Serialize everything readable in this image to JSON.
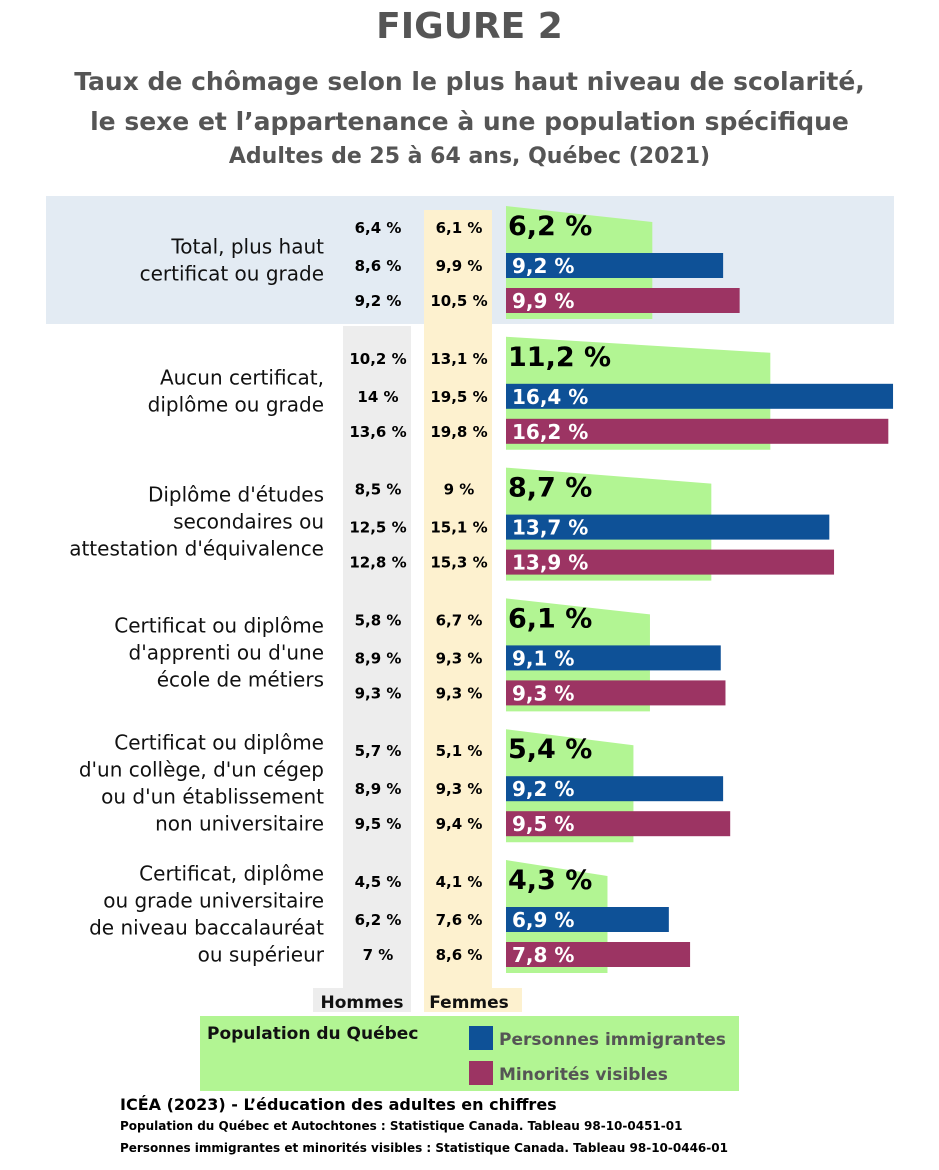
{
  "figure": {
    "label": "FIGURE 2",
    "title_line1": "Taux de chômage selon le plus haut niveau de scolarité,",
    "title_line2": "le sexe et l’appartenance à une population spécifique",
    "subtitle": "Adultes de 25 à 64 ans, Québec (2021)"
  },
  "colors": {
    "quebec": "#b2f593",
    "immigrants": "#0e5197",
    "minorities": "#9c3463",
    "hommes_col": "#ededed",
    "femmes_col": "#fdf1cf",
    "total_band": "#e3ebf3",
    "title_gray": "#555555"
  },
  "chart_data": {
    "type": "bar",
    "orientation": "horizontal",
    "column_headers": {
      "hommes": "Hommes",
      "femmes": "Femmes"
    },
    "categories": [
      {
        "label": [
          "Total, plus haut",
          "certificat ou grade"
        ],
        "highlighted": true,
        "rows": [
          {
            "group": "Population du Québec",
            "hommes": "6,4 %",
            "femmes": "6,1 %",
            "value": 6.2,
            "value_label": "6,2 %"
          },
          {
            "group": "Personnes immigrantes",
            "hommes": "8,6 %",
            "femmes": "9,9 %",
            "value": 9.2,
            "value_label": "9,2 %"
          },
          {
            "group": "Minorités visibles",
            "hommes": "9,2 %",
            "femmes": "10,5 %",
            "value": 9.9,
            "value_label": "9,9 %"
          }
        ]
      },
      {
        "label": [
          "Aucun certificat,",
          "diplôme ou grade"
        ],
        "rows": [
          {
            "group": "Population du Québec",
            "hommes": "10,2 %",
            "femmes": "13,1 %",
            "value": 11.2,
            "value_label": "11,2 %"
          },
          {
            "group": "Personnes immigrantes",
            "hommes": "14 %",
            "femmes": "19,5 %",
            "value": 16.4,
            "value_label": "16,4 %"
          },
          {
            "group": "Minorités visibles",
            "hommes": "13,6 %",
            "femmes": "19,8 %",
            "value": 16.2,
            "value_label": "16,2 %"
          }
        ]
      },
      {
        "label": [
          "Diplôme d'études",
          "secondaires ou",
          "attestation d'équivalence"
        ],
        "rows": [
          {
            "group": "Population du Québec",
            "hommes": "8,5 %",
            "femmes": "9 %",
            "value": 8.7,
            "value_label": "8,7 %"
          },
          {
            "group": "Personnes immigrantes",
            "hommes": "12,5 %",
            "femmes": "15,1 %",
            "value": 13.7,
            "value_label": "13,7 %"
          },
          {
            "group": "Minorités visibles",
            "hommes": "12,8 %",
            "femmes": "15,3 %",
            "value": 13.9,
            "value_label": "13,9 %"
          }
        ]
      },
      {
        "label": [
          "Certificat ou diplôme",
          "d'apprenti ou d'une",
          "école de métiers"
        ],
        "rows": [
          {
            "group": "Population du Québec",
            "hommes": "5,8 %",
            "femmes": "6,7 %",
            "value": 6.1,
            "value_label": "6,1 %"
          },
          {
            "group": "Personnes immigrantes",
            "hommes": "8,9 %",
            "femmes": "9,3 %",
            "value": 9.1,
            "value_label": "9,1 %"
          },
          {
            "group": "Minorités visibles",
            "hommes": "9,3 %",
            "femmes": "9,3 %",
            "value": 9.3,
            "value_label": "9,3 %"
          }
        ]
      },
      {
        "label": [
          "Certificat ou diplôme",
          "d'un collège, d'un cégep",
          "ou d'un établissement",
          "non universitaire"
        ],
        "rows": [
          {
            "group": "Population du Québec",
            "hommes": "5,7 %",
            "femmes": "5,1 %",
            "value": 5.4,
            "value_label": "5,4 %"
          },
          {
            "group": "Personnes immigrantes",
            "hommes": "8,9 %",
            "femmes": "9,3 %",
            "value": 9.2,
            "value_label": "9,2 %"
          },
          {
            "group": "Minorités visibles",
            "hommes": "9,5 %",
            "femmes": "9,4 %",
            "value": 9.5,
            "value_label": "9,5 %"
          }
        ]
      },
      {
        "label": [
          "Certificat, diplôme",
          "ou grade universitaire",
          "de niveau baccalauréat",
          "ou supérieur"
        ],
        "rows": [
          {
            "group": "Population du Québec",
            "hommes": "4,5 %",
            "femmes": "4,1 %",
            "value": 4.3,
            "value_label": "4,3 %"
          },
          {
            "group": "Personnes immigrantes",
            "hommes": "6,2 %",
            "femmes": "7,6 %",
            "value": 6.9,
            "value_label": "6,9 %"
          },
          {
            "group": "Minorités visibles",
            "hommes": "7 %",
            "femmes": "8,6 %",
            "value": 7.8,
            "value_label": "7,8 %"
          }
        ]
      }
    ],
    "legend": {
      "placement": "bottom",
      "items": [
        {
          "name": "Population du Québec",
          "color": "#b2f593"
        },
        {
          "name": "Personnes immigrantes",
          "color": "#0e5197"
        },
        {
          "name": "Minorités visibles",
          "color": "#9c3463"
        }
      ]
    },
    "xlim": [
      0,
      16.4
    ],
    "grid": false
  },
  "source": {
    "line1": "ICÉA (2023) - L’éducation des adultes en chiffres",
    "line2": "Population du Québec et Autochtones : Statistique Canada. Tableau 98-10-0451-01",
    "line3": "Personnes immigrantes et minorités visibles : Statistique Canada. Tableau 98-10-0446-01"
  }
}
